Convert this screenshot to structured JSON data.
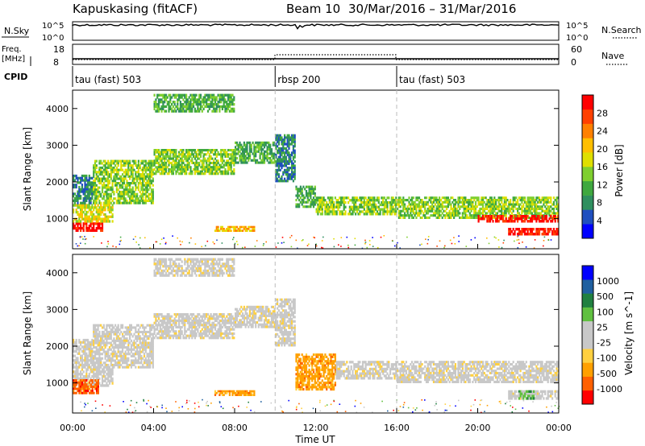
{
  "header": {
    "station": "Kapuskasing (fitACF)",
    "beam": "Beam 10",
    "date_range": "30/Mar/2016 – 31/Mar/2016"
  },
  "top_panels": {
    "nsky_label": "N.Sky",
    "nsky_ticks": [
      "10^5",
      "10^0"
    ],
    "nsearch_label": "N.Search",
    "nsearch_ticks": [
      "10^5",
      "10^0"
    ],
    "freq_label_line1": "Freq.",
    "freq_label_line2": "[MHz]",
    "freq_ticks": [
      "18",
      "8"
    ],
    "nave_label": "Nave",
    "nave_ticks": [
      "60",
      "0"
    ],
    "cpid_label": "CPID",
    "cpid_segments": [
      {
        "label": "tau (fast) 503",
        "start_hour": 0,
        "end_hour": 10
      },
      {
        "label": "rbsp 200",
        "start_hour": 10,
        "end_hour": 16
      },
      {
        "label": "tau (fast) 503",
        "start_hour": 16,
        "end_hour": 24
      }
    ]
  },
  "colors": {
    "power": [
      "#0000ff",
      "#1f4fbf",
      "#2f8f5f",
      "#3fa83f",
      "#7fcf2f",
      "#dfdf00",
      "#ffbf00",
      "#ff8000",
      "#ff4000",
      "#ff0000"
    ],
    "velocity": [
      "#ff0000",
      "#ff6000",
      "#ffa000",
      "#ffd040",
      "#c8c8c8",
      "#c8c8c8",
      "#60c040",
      "#208040",
      "#2060a0",
      "#0000ff"
    ],
    "ground_scatter": "#c0c0c0"
  },
  "chart_data": [
    {
      "type": "heatmap",
      "title": "Power",
      "ylabel": "Slant Range [km]",
      "colorbar_label": "Power [dB]",
      "colorbar_ticks": [
        "28",
        "24",
        "20",
        "16",
        "12",
        "8",
        "4"
      ],
      "ylim": [
        180,
        4500
      ],
      "yticks": [
        "1000",
        "2000",
        "3000",
        "4000"
      ],
      "xlim_hours": [
        0,
        24
      ],
      "bands": [
        {
          "start_hour": 0.0,
          "end_hour": 1.5,
          "range_low": 650,
          "range_high": 900,
          "level": 9
        },
        {
          "start_hour": 0.0,
          "end_hour": 2.0,
          "range_low": 900,
          "range_high": 1400,
          "level": 5
        },
        {
          "start_hour": 0.0,
          "end_hour": 1.0,
          "range_low": 1400,
          "range_high": 2200,
          "level": 2
        },
        {
          "start_hour": 1.0,
          "end_hour": 4.0,
          "range_low": 1400,
          "range_high": 2600,
          "level": 4
        },
        {
          "start_hour": 4.0,
          "end_hour": 8.0,
          "range_low": 2200,
          "range_high": 2900,
          "level": 4
        },
        {
          "start_hour": 8.0,
          "end_hour": 10.0,
          "range_low": 2500,
          "range_high": 3100,
          "level": 3
        },
        {
          "start_hour": 4.0,
          "end_hour": 8.0,
          "range_low": 3900,
          "range_high": 4400,
          "level": 3
        },
        {
          "start_hour": 10.0,
          "end_hour": 11.0,
          "range_low": 2000,
          "range_high": 3300,
          "level": 2
        },
        {
          "start_hour": 11.0,
          "end_hour": 12.0,
          "range_low": 1300,
          "range_high": 1900,
          "level": 3
        },
        {
          "start_hour": 12.0,
          "end_hour": 16.0,
          "range_low": 1100,
          "range_high": 1600,
          "level": 4
        },
        {
          "start_hour": 16.0,
          "end_hour": 24.0,
          "range_low": 1000,
          "range_high": 1600,
          "level": 4
        },
        {
          "start_hour": 20.0,
          "end_hour": 24.0,
          "range_low": 900,
          "range_high": 1100,
          "level": 9
        },
        {
          "start_hour": 21.5,
          "end_hour": 24.0,
          "range_low": 550,
          "range_high": 750,
          "level": 9
        },
        {
          "start_hour": 7.0,
          "end_hour": 9.0,
          "range_low": 650,
          "range_high": 800,
          "level": 6
        }
      ]
    },
    {
      "type": "heatmap",
      "title": "Velocity",
      "ylabel": "Slant Range [km]",
      "colorbar_label": "Velocity [m s^-1]",
      "colorbar_ticks": [
        "1000",
        "500",
        "100",
        "25",
        "-25",
        "-100",
        "-500",
        "-1000"
      ],
      "ylim": [
        180,
        4500
      ],
      "yticks": [
        "1000",
        "2000",
        "3000",
        "4000"
      ],
      "xlim_hours": [
        0,
        24
      ],
      "xticks": [
        "00:00",
        "04:00",
        "08:00",
        "12:00",
        "16:00",
        "20:00",
        "00:00"
      ],
      "xlabel": "Time UT",
      "bands": [
        {
          "start_hour": 0.0,
          "end_hour": 2.0,
          "range_low": 900,
          "range_high": 1400,
          "level": 4
        },
        {
          "start_hour": 0.0,
          "end_hour": 1.3,
          "range_low": 700,
          "range_high": 1100,
          "level": 1
        },
        {
          "start_hour": 0.0,
          "end_hour": 1.0,
          "range_low": 1400,
          "range_high": 2200,
          "level": 4
        },
        {
          "start_hour": 1.0,
          "end_hour": 4.0,
          "range_low": 1400,
          "range_high": 2600,
          "level": 4
        },
        {
          "start_hour": 4.0,
          "end_hour": 8.0,
          "range_low": 2200,
          "range_high": 2900,
          "level": 4
        },
        {
          "start_hour": 8.0,
          "end_hour": 10.0,
          "range_low": 2500,
          "range_high": 3100,
          "level": 4
        },
        {
          "start_hour": 4.0,
          "end_hour": 8.0,
          "range_low": 3900,
          "range_high": 4400,
          "level": 4
        },
        {
          "start_hour": 10.0,
          "end_hour": 11.0,
          "range_low": 2000,
          "range_high": 3300,
          "level": 4
        },
        {
          "start_hour": 11.0,
          "end_hour": 13.0,
          "range_low": 800,
          "range_high": 1800,
          "level": 2
        },
        {
          "start_hour": 13.0,
          "end_hour": 16.0,
          "range_low": 1100,
          "range_high": 1600,
          "level": 4
        },
        {
          "start_hour": 16.0,
          "end_hour": 24.0,
          "range_low": 1000,
          "range_high": 1600,
          "level": 4
        },
        {
          "start_hour": 21.5,
          "end_hour": 24.0,
          "range_low": 550,
          "range_high": 800,
          "level": 4
        },
        {
          "start_hour": 22.0,
          "end_hour": 22.8,
          "range_low": 550,
          "range_high": 800,
          "level": 6
        },
        {
          "start_hour": 7.0,
          "end_hour": 9.0,
          "range_low": 650,
          "range_high": 800,
          "level": 2
        }
      ]
    }
  ]
}
